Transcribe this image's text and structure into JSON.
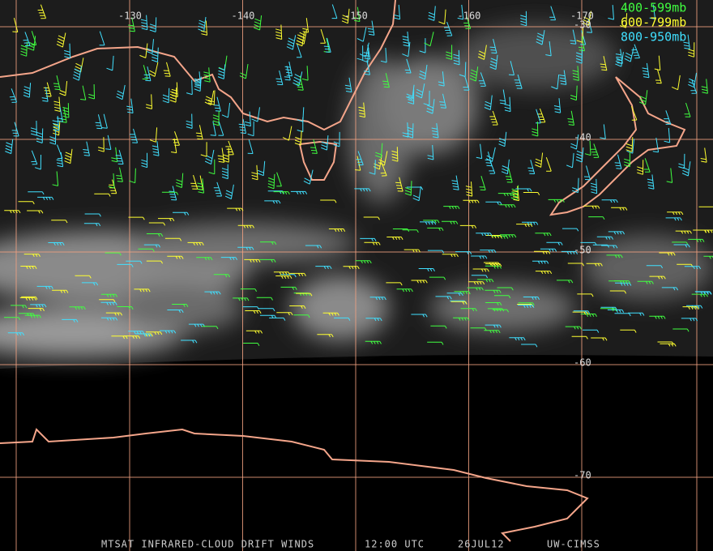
{
  "map": {
    "legend": [
      "400-599mb",
      "600-799mb",
      "800-950mb"
    ],
    "longitude_labels": [
      "-130",
      "-140",
      "-150",
      "-160",
      "-170"
    ],
    "latitude_labels": [
      "-30",
      "-40",
      "-50",
      "-60",
      "-70"
    ],
    "caption": {
      "product": "MTSAT INFRARED-CLOUD DRIFT WINDS",
      "time": "12:00 UTC",
      "date": "26JUL12",
      "source": "UW-CIMSS"
    }
  }
}
